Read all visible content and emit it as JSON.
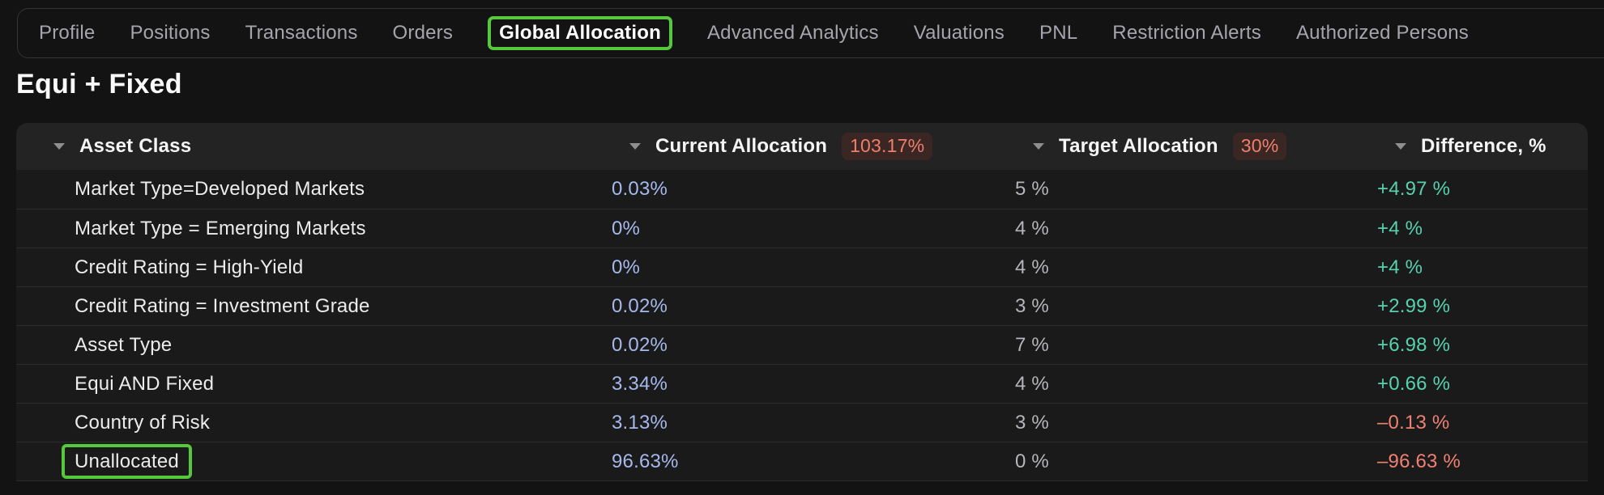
{
  "tab_bar": {
    "tabs": [
      {
        "label": "Profile",
        "active": false
      },
      {
        "label": "Positions",
        "active": false
      },
      {
        "label": "Transactions",
        "active": false
      },
      {
        "label": "Orders",
        "active": false
      },
      {
        "label": "Global Allocation",
        "active": true
      },
      {
        "label": "Advanced Analytics",
        "active": false
      },
      {
        "label": "Valuations",
        "active": false
      },
      {
        "label": "PNL",
        "active": false
      },
      {
        "label": "Restriction Alerts",
        "active": false
      },
      {
        "label": "Authorized Persons",
        "active": false
      }
    ]
  },
  "page": {
    "title": "Equi + Fixed"
  },
  "allocation_table": {
    "columns": [
      {
        "key": "asset-class",
        "label": "Asset Class",
        "badge": null
      },
      {
        "key": "current-allocation",
        "label": "Current Allocation",
        "badge": "103.17%"
      },
      {
        "key": "target-allocation",
        "label": "Target Allocation",
        "badge": "30%"
      },
      {
        "key": "difference",
        "label": "Difference, %",
        "badge": null
      }
    ],
    "rows": [
      {
        "asset_class": "Market Type=Developed Markets",
        "current": "0.03%",
        "target": "5 %",
        "difference": "+4.97 %",
        "trend": "positive",
        "highlighted": false
      },
      {
        "asset_class": "Market Type = Emerging Markets",
        "current": "0%",
        "target": "4 %",
        "difference": "+4 %",
        "trend": "positive",
        "highlighted": false
      },
      {
        "asset_class": "Credit Rating = High-Yield",
        "current": "0%",
        "target": "4 %",
        "difference": "+4 %",
        "trend": "positive",
        "highlighted": false
      },
      {
        "asset_class": "Credit Rating = Investment Grade",
        "current": "0.02%",
        "target": "3 %",
        "difference": "+2.99 %",
        "trend": "positive",
        "highlighted": false
      },
      {
        "asset_class": "Asset Type",
        "current": "0.02%",
        "target": "7 %",
        "difference": "+6.98 %",
        "trend": "positive",
        "highlighted": false
      },
      {
        "asset_class": "Equi AND Fixed",
        "current": "3.34%",
        "target": "4 %",
        "difference": "+0.66 %",
        "trend": "positive",
        "highlighted": false
      },
      {
        "asset_class": "Country of Risk",
        "current": "3.13%",
        "target": "3 %",
        "difference": "–0.13 %",
        "trend": "negative",
        "highlighted": false
      },
      {
        "asset_class": "Unallocated",
        "current": "96.63%",
        "target": "0 %",
        "difference": "–96.63 %",
        "trend": "negative",
        "highlighted": true
      }
    ]
  },
  "icons": {
    "column_sort": "triangle-down-icon"
  },
  "colors": {
    "highlight_green": "#55c83c",
    "current_value_blue": "#a6b9ec",
    "positive_value": "#57d2ae",
    "negative_value": "#ef8173",
    "badge_text": "#ef7e6d",
    "badge_background": "#3a2723"
  }
}
